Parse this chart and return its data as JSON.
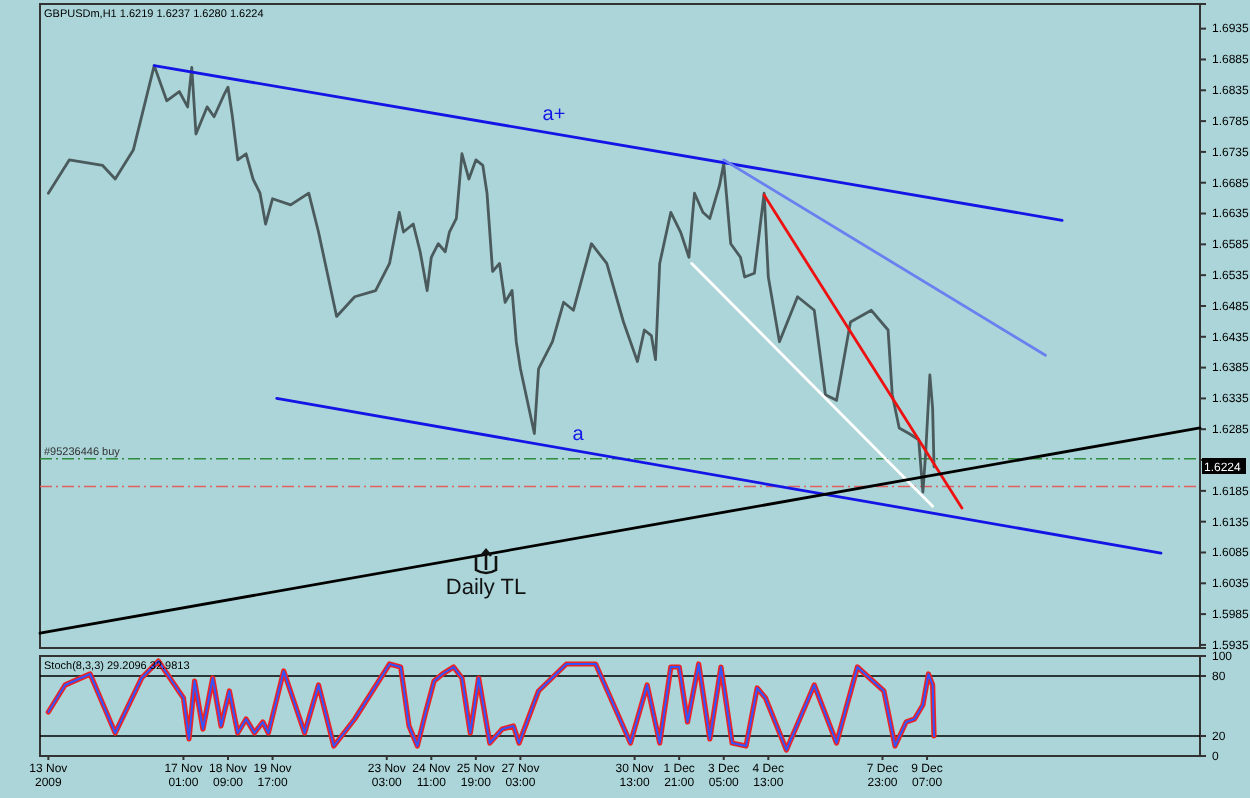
{
  "chart_data": [
    {
      "type": "line",
      "title": "GBPUSDm,H1 1.6219 1.6237 1.6280 1.6224",
      "xlim": [
        "2009-11-12T18:00",
        "2009-12-17T11:00"
      ],
      "ylim": [
        1.593,
        1.6975
      ],
      "tick_labels": "y",
      "yticks": [
        1.5935,
        1.5985,
        1.6035,
        1.6085,
        1.6135,
        1.6185,
        {
          "value": 1.6235,
          "label": null
        },
        1.6285,
        1.6335,
        1.6385,
        1.6435,
        1.6485,
        1.6535,
        1.6585,
        1.6635,
        1.6685,
        1.6735,
        1.6785,
        1.6835,
        1.6885,
        1.6935
      ],
      "series": [
        {
          "color": "#4b5a5c",
          "x": [
            "2009-11-13T00:00",
            "2009-11-13T15:00",
            "2009-11-14T15:00",
            "2009-11-15T00:00",
            "2009-11-15T13:00",
            "2009-11-16T04:00",
            "2009-11-16T13:00",
            "2009-11-16T22:00",
            "2009-11-17T04:00",
            "2009-11-17T07:00",
            "2009-11-17T10:00",
            "2009-11-17T18:00",
            "2009-11-17T23:00",
            "2009-11-18T06:00",
            "2009-11-18T09:00",
            "2009-11-18T12:00",
            "2009-11-18T16:00",
            "2009-11-18T22:00",
            "2009-11-19T03:00",
            "2009-11-19T08:00",
            "2009-11-19T12:00",
            "2009-11-19T17:00",
            "2009-11-20T06:00",
            "2009-11-20T19:00",
            "2009-11-21T02:00",
            "2009-11-21T15:00",
            "2009-11-22T04:00",
            "2009-11-22T19:00",
            "2009-11-23T05:00",
            "2009-11-23T12:00",
            "2009-11-23T15:00",
            "2009-11-23T22:00",
            "2009-11-24T03:00",
            "2009-11-24T08:00",
            "2009-11-24T11:00",
            "2009-11-24T16:00",
            "2009-11-24T21:00",
            "2009-11-25T00:00",
            "2009-11-25T05:00",
            "2009-11-25T09:00",
            "2009-11-25T14:00",
            "2009-11-25T19:00",
            "2009-11-26T00:00",
            "2009-11-26T03:00",
            "2009-11-26T07:00",
            "2009-11-26T12:00",
            "2009-11-26T16:00",
            "2009-11-26T21:00",
            "2009-11-27T00:00",
            "2009-11-27T03:00",
            "2009-11-27T13:00",
            "2009-11-27T16:00",
            "2009-11-28T02:00",
            "2009-11-28T10:00",
            "2009-11-28T17:00",
            "2009-11-29T06:00",
            "2009-11-29T17:00",
            "2009-11-30T05:00",
            "2009-11-30T15:00",
            "2009-11-30T20:00",
            "2009-12-01T01:00",
            "2009-12-01T04:00",
            "2009-12-01T07:00",
            "2009-12-01T15:00",
            "2009-12-01T22:00",
            "2009-12-02T04:00",
            "2009-12-02T08:00",
            "2009-12-02T14:00",
            "2009-12-02T19:00",
            "2009-12-03T02:00",
            "2009-12-03T05:00",
            "2009-12-03T10:00",
            "2009-12-03T17:00",
            "2009-12-03T20:00",
            "2009-12-04T03:00",
            "2009-12-04T10:00",
            "2009-12-04T13:00",
            "2009-12-04T21:00",
            "2009-12-05T10:00",
            "2009-12-05T22:00",
            "2009-12-06T06:00",
            "2009-12-06T14:00",
            "2009-12-07T00:00",
            "2009-12-07T15:00",
            "2009-12-08T03:00",
            "2009-12-08T06:00",
            "2009-12-08T11:00",
            "2009-12-08T18:00",
            "2009-12-09T01:00",
            "2009-12-09T04:00",
            "2009-12-09T06:00",
            "2009-12-09T09:00",
            "2009-12-09T11:00",
            "2009-12-09T12:00"
          ],
          "values": [
            1.6668,
            1.6722,
            1.6713,
            1.6691,
            1.6738,
            1.6875,
            1.6818,
            1.6833,
            1.6808,
            1.6872,
            1.6764,
            1.6808,
            1.6792,
            1.6827,
            1.684,
            1.6795,
            1.6722,
            1.6732,
            1.6691,
            1.6668,
            1.6618,
            1.6659,
            1.6649,
            1.6668,
            1.6605,
            1.6468,
            1.65,
            1.651,
            1.6554,
            1.6637,
            1.6605,
            1.6618,
            1.6573,
            1.651,
            1.6564,
            1.6586,
            1.6573,
            1.6605,
            1.6627,
            1.6732,
            1.6691,
            1.6722,
            1.6713,
            1.6668,
            1.6541,
            1.6554,
            1.6491,
            1.651,
            1.6427,
            1.6383,
            1.6278,
            1.6383,
            1.6427,
            1.6491,
            1.6478,
            1.6586,
            1.6554,
            1.6459,
            1.6395,
            1.6446,
            1.6437,
            1.6398,
            1.6554,
            1.6637,
            1.6605,
            1.6564,
            1.6668,
            1.6637,
            1.6627,
            1.6681,
            1.6716,
            1.6586,
            1.6564,
            1.6532,
            1.6538,
            1.6668,
            1.6532,
            1.6427,
            1.65,
            1.6478,
            1.6341,
            1.6332,
            1.6459,
            1.6478,
            1.6446,
            1.6341,
            1.6287,
            1.6278,
            1.6268,
            1.6183,
            1.6246,
            1.6373,
            1.6319,
            1.6224
          ]
        },
        {
          "color": "#1414e6",
          "x": [
            "2009-11-16T04:00",
            "2009-12-13T08:00"
          ],
          "values": [
            1.6875,
            1.6624
          ]
        },
        {
          "color": "#6b80f0",
          "x": [
            "2009-12-03T05:00",
            "2009-12-12T20:00"
          ],
          "values": [
            1.6722,
            1.6405
          ]
        },
        {
          "color": "#ee1111",
          "x": [
            "2009-12-04T10:00",
            "2009-12-10T08:00"
          ],
          "values": [
            1.6665,
            1.6157
          ]
        },
        {
          "color": "#ffffff",
          "x": [
            "2009-12-02T06:00",
            "2009-12-09T11:00"
          ],
          "values": [
            1.6554,
            1.616
          ]
        },
        {
          "color": "#1414e6",
          "x": [
            "2009-11-19T20:00",
            "2009-12-16T07:00"
          ],
          "values": [
            1.6335,
            1.6084
          ]
        },
        {
          "color": "#000000",
          "x": [
            "2009-11-12T18:00",
            "2009-12-17T11:00"
          ],
          "values": [
            1.5954,
            1.6287
          ]
        }
      ],
      "ref_lines": [
        {
          "axis": "y",
          "value": 1.6237,
          "label": "#95236446 buy",
          "color": "#2e8b3a",
          "line_style": "dashed"
        },
        {
          "axis": "y",
          "value": 1.6192,
          "color": "#e06060",
          "line_style": "dashed"
        }
      ],
      "annotations": [
        "a+",
        "a",
        "Daily TL",
        "1.6224"
      ]
    },
    {
      "type": "line",
      "title": "Stoch(8,3,3) 29.2096 32.9813",
      "xlim": [
        "2009-11-12T18:00",
        "2009-12-17T11:00"
      ],
      "ylim": [
        0,
        100
      ],
      "yticks": [
        100,
        80,
        20,
        0
      ],
      "xticks": [
        {
          "value": "2009-11-13",
          "label": "13 Nov 2009"
        },
        {
          "value": "2009-11-17T01:00",
          "label": "17 Nov 01:00"
        },
        {
          "value": "2009-11-18T09:00",
          "label": "18 Nov 09:00"
        },
        {
          "value": "2009-11-19T17:00",
          "label": "19 Nov 17:00"
        },
        {
          "value": "2009-11-23T03:00",
          "label": "23 Nov 03:00"
        },
        {
          "value": "2009-11-24T11:00",
          "label": "24 Nov 11:00"
        },
        {
          "value": "2009-11-25T19:00",
          "label": "25 Nov 19:00"
        },
        {
          "value": "2009-11-27T03:00",
          "label": "27 Nov 03:00"
        },
        {
          "value": "2009-11-30T13:00",
          "label": "30 Nov 13:00"
        },
        {
          "value": "2009-12-01T21:00",
          "label": "1 Dec 21:00"
        },
        {
          "value": "2009-12-03T05:00",
          "label": "3 Dec 05:00"
        },
        {
          "value": "2009-12-04T13:00",
          "label": "4 Dec 13:00"
        },
        {
          "value": "2009-12-07T23:00",
          "label": "7 Dec 23:00"
        },
        {
          "value": "2009-12-09T07:00",
          "label": "9 Dec 07:00"
        }
      ],
      "x": [
        "2009-11-13T00:00",
        "2009-11-13T12:00",
        "2009-11-14T06:00",
        "2009-11-15T00:00",
        "2009-11-15T19:00",
        "2009-11-16T07:00",
        "2009-11-17T01:00",
        "2009-11-17T05:00",
        "2009-11-17T09:00",
        "2009-11-17T15:00",
        "2009-11-17T22:00",
        "2009-11-18T04:00",
        "2009-11-18T10:00",
        "2009-11-18T16:00",
        "2009-11-18T22:00",
        "2009-11-19T04:00",
        "2009-11-19T10:00",
        "2009-11-19T14:00",
        "2009-11-20T01:00",
        "2009-11-20T16:00",
        "2009-11-21T02:00",
        "2009-11-21T13:00",
        "2009-11-22T04:00",
        "2009-11-23T05:00",
        "2009-11-23T13:00",
        "2009-11-23T19:00",
        "2009-11-24T01:00",
        "2009-11-24T07:00",
        "2009-11-24T13:00",
        "2009-11-24T19:00",
        "2009-11-25T03:00",
        "2009-11-25T09:00",
        "2009-11-25T15:00",
        "2009-11-25T21:00",
        "2009-11-26T05:00",
        "2009-11-26T14:00",
        "2009-11-26T22:00",
        "2009-11-27T02:00",
        "2009-11-27T16:00",
        "2009-11-28T12:00",
        "2009-11-29T09:00",
        "2009-11-30T10:00",
        "2009-11-30T22:00",
        "2009-12-01T07:00",
        "2009-12-01T15:00",
        "2009-12-01T21:00",
        "2009-12-02T03:00",
        "2009-12-02T11:00",
        "2009-12-02T19:00",
        "2009-12-03T03:00",
        "2009-12-03T11:00",
        "2009-12-03T21:00",
        "2009-12-04T05:00",
        "2009-12-04T11:00",
        "2009-12-05T02:00",
        "2009-12-05T22:00",
        "2009-12-06T14:00",
        "2009-12-07T05:00",
        "2009-12-08T00:00",
        "2009-12-08T08:00",
        "2009-12-08T16:00",
        "2009-12-08T22:00",
        "2009-12-09T04:00",
        "2009-12-09T08:00",
        "2009-12-09T11:00",
        "2009-12-09T12:00"
      ],
      "series": [
        {
          "color": "#ee2222",
          "values": [
            44,
            71,
            82,
            23,
            78,
            95,
            58,
            17,
            75,
            27,
            78,
            30,
            65,
            23,
            37,
            23,
            34,
            23,
            85,
            23,
            71,
            10,
            37,
            92,
            89,
            30,
            10,
            44,
            75,
            82,
            89,
            78,
            23,
            78,
            13,
            27,
            30,
            13,
            65,
            92,
            92,
            13,
            71,
            13,
            89,
            89,
            34,
            92,
            17,
            89,
            13,
            10,
            68,
            58,
            6,
            71,
            13,
            89,
            65,
            10,
            34,
            37,
            51,
            82,
            71,
            20
          ]
        },
        {
          "color": "#3355ff",
          "values": [
            44,
            71,
            82,
            23,
            78,
            95,
            58,
            17,
            75,
            27,
            78,
            30,
            65,
            23,
            37,
            23,
            34,
            23,
            85,
            23,
            71,
            10,
            37,
            92,
            89,
            30,
            10,
            44,
            75,
            82,
            89,
            78,
            23,
            78,
            13,
            27,
            30,
            13,
            65,
            92,
            92,
            13,
            71,
            13,
            89,
            89,
            34,
            92,
            17,
            89,
            13,
            10,
            68,
            58,
            6,
            71,
            13,
            89,
            65,
            10,
            34,
            37,
            51,
            82,
            71,
            20
          ]
        }
      ],
      "ref_lines": [
        {
          "axis": "y",
          "value": 80,
          "color": "#000000",
          "line_style": "solid"
        },
        {
          "axis": "y",
          "value": 20,
          "color": "#000000",
          "line_style": "solid"
        }
      ]
    }
  ]
}
